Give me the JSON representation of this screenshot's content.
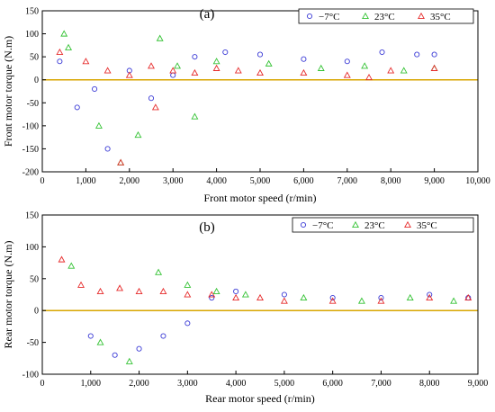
{
  "chart_data": [
    {
      "type": "scatter",
      "panel_label": "(a)",
      "xlabel": "Front motor speed (r/min)",
      "ylabel": "Front motor torque (N.m)",
      "xlim": [
        0,
        10000
      ],
      "ylim": [
        -200,
        150
      ],
      "xticks": [
        0,
        1000,
        2000,
        3000,
        4000,
        5000,
        6000,
        7000,
        8000,
        9000,
        10000
      ],
      "xtick_labels": [
        "0",
        "1,000",
        "2,000",
        "3,000",
        "4,000",
        "5,000",
        "6,000",
        "7,000",
        "8,000",
        "9,000",
        "10,000"
      ],
      "yticks": [
        -200,
        -150,
        -100,
        -50,
        0,
        50,
        100,
        150
      ],
      "ytick_labels": [
        "-200",
        "-150",
        "-100",
        "-50",
        "0",
        "50",
        "100",
        "150"
      ],
      "grid": false,
      "legend_position": "top-right",
      "series": [
        {
          "name": "−7°C",
          "color": "#3b3bd6",
          "marker": "circle",
          "x": [
            800,
            1500,
            2500,
            3500,
            4200,
            5000,
            6000,
            7000,
            7800,
            8600,
            9000,
            2000,
            3000,
            400,
            1200
          ],
          "y": [
            -60,
            -150,
            -40,
            50,
            60,
            55,
            45,
            40,
            60,
            55,
            55,
            20,
            10,
            40,
            -20
          ]
        },
        {
          "name": "23°C",
          "color": "#33c233",
          "marker": "triangle",
          "x": [
            600,
            1300,
            2200,
            3100,
            4000,
            5200,
            6400,
            7400,
            8300,
            9000,
            1800,
            2700,
            500,
            3500
          ],
          "y": [
            70,
            -100,
            -120,
            30,
            40,
            35,
            25,
            30,
            20,
            25,
            -180,
            90,
            100,
            -80
          ]
        },
        {
          "name": "35°C",
          "color": "#e62a2a",
          "marker": "triangle",
          "x": [
            400,
            1000,
            1500,
            2000,
            2500,
            3000,
            3500,
            4000,
            4500,
            5000,
            6000,
            7000,
            7500,
            8000,
            9000,
            1800,
            2600
          ],
          "y": [
            60,
            40,
            20,
            10,
            30,
            20,
            15,
            25,
            20,
            15,
            15,
            10,
            5,
            20,
            25,
            -180,
            -60
          ]
        }
      ]
    },
    {
      "type": "scatter",
      "panel_label": "(b)",
      "xlabel": "Rear motor speed (r/min)",
      "ylabel": "Rear motor torque (N.m)",
      "xlim": [
        0,
        9000
      ],
      "ylim": [
        -100,
        150
      ],
      "xticks": [
        0,
        1000,
        2000,
        3000,
        4000,
        5000,
        6000,
        7000,
        8000,
        9000
      ],
      "xtick_labels": [
        "0",
        "1,000",
        "2,000",
        "3,000",
        "4,000",
        "5,000",
        "6,000",
        "7,000",
        "8,000",
        "9,000"
      ],
      "yticks": [
        -100,
        -50,
        0,
        50,
        100,
        150
      ],
      "ytick_labels": [
        "-100",
        "-50",
        "0",
        "50",
        "100",
        "150"
      ],
      "grid": false,
      "legend_position": "top-right",
      "series": [
        {
          "name": "−7°C",
          "color": "#3b3bd6",
          "marker": "circle",
          "x": [
            1000,
            1500,
            2000,
            2500,
            3000,
            3500,
            4000,
            5000,
            6000,
            7000,
            8000,
            8800
          ],
          "y": [
            -40,
            -70,
            -60,
            -40,
            -20,
            20,
            30,
            25,
            20,
            20,
            25,
            20
          ]
        },
        {
          "name": "23°C",
          "color": "#33c233",
          "marker": "triangle",
          "x": [
            600,
            1200,
            1800,
            2400,
            3000,
            3600,
            4200,
            5400,
            6600,
            7600,
            8500
          ],
          "y": [
            70,
            -50,
            -80,
            60,
            40,
            30,
            25,
            20,
            15,
            20,
            15
          ]
        },
        {
          "name": "35°C",
          "color": "#e62a2a",
          "marker": "triangle",
          "x": [
            400,
            800,
            1200,
            1600,
            2000,
            2500,
            3000,
            3500,
            4000,
            4500,
            5000,
            6000,
            7000,
            8000,
            8800
          ],
          "y": [
            80,
            40,
            30,
            35,
            30,
            30,
            25,
            25,
            20,
            20,
            15,
            15,
            15,
            20,
            20
          ]
        }
      ]
    }
  ]
}
